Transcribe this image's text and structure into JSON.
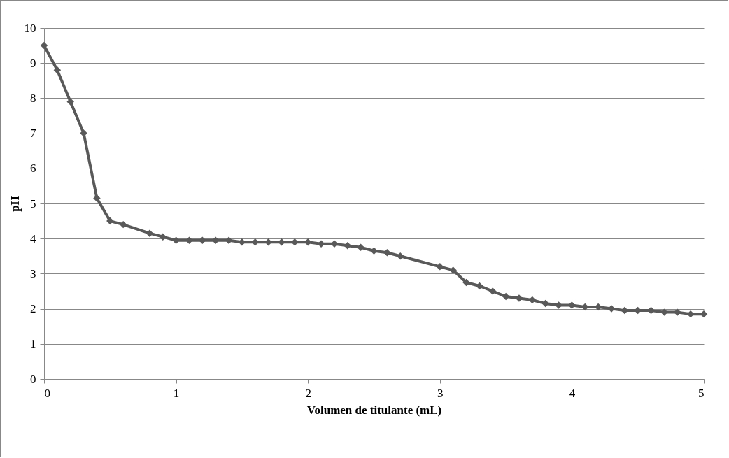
{
  "chart_data": {
    "type": "line",
    "xlabel": "Volumen de titulante (mL)",
    "ylabel": "pH",
    "xlim": [
      0,
      5
    ],
    "xticks": [
      0,
      1,
      2,
      3,
      4,
      5
    ],
    "ylim": [
      0,
      10
    ],
    "yticks": [
      0,
      1,
      2,
      3,
      4,
      5,
      6,
      7,
      8,
      9,
      10
    ],
    "grid": "y",
    "marker": "diamond",
    "line_style": "solid",
    "legend": false,
    "series": [
      {
        "color": "#595959",
        "x": [
          0,
          0.1,
          0.2,
          0.3,
          0.4,
          0.5,
          0.6,
          0.8,
          0.9,
          1.0,
          1.1,
          1.2,
          1.3,
          1.4,
          1.5,
          1.6,
          1.7,
          1.8,
          1.9,
          2.0,
          2.1,
          2.2,
          2.3,
          2.4,
          2.5,
          2.6,
          2.7,
          3.0,
          3.1,
          3.2,
          3.3,
          3.4,
          3.5,
          3.6,
          3.7,
          3.8,
          3.9,
          4.0,
          4.1,
          4.2,
          4.3,
          4.4,
          4.5,
          4.6,
          4.7,
          4.8,
          4.9,
          5.0
        ],
        "values": [
          9.5,
          8.8,
          7.9,
          7.0,
          5.15,
          4.5,
          4.4,
          4.15,
          4.05,
          3.95,
          3.95,
          3.95,
          3.95,
          3.95,
          3.9,
          3.9,
          3.9,
          3.9,
          3.9,
          3.9,
          3.85,
          3.85,
          3.8,
          3.75,
          3.65,
          3.6,
          3.5,
          3.2,
          3.1,
          2.75,
          2.65,
          2.5,
          2.35,
          2.3,
          2.25,
          2.15,
          2.1,
          2.1,
          2.05,
          2.05,
          2.0,
          1.95,
          1.95,
          1.95,
          1.9,
          1.9,
          1.85,
          1.85
        ]
      }
    ]
  }
}
